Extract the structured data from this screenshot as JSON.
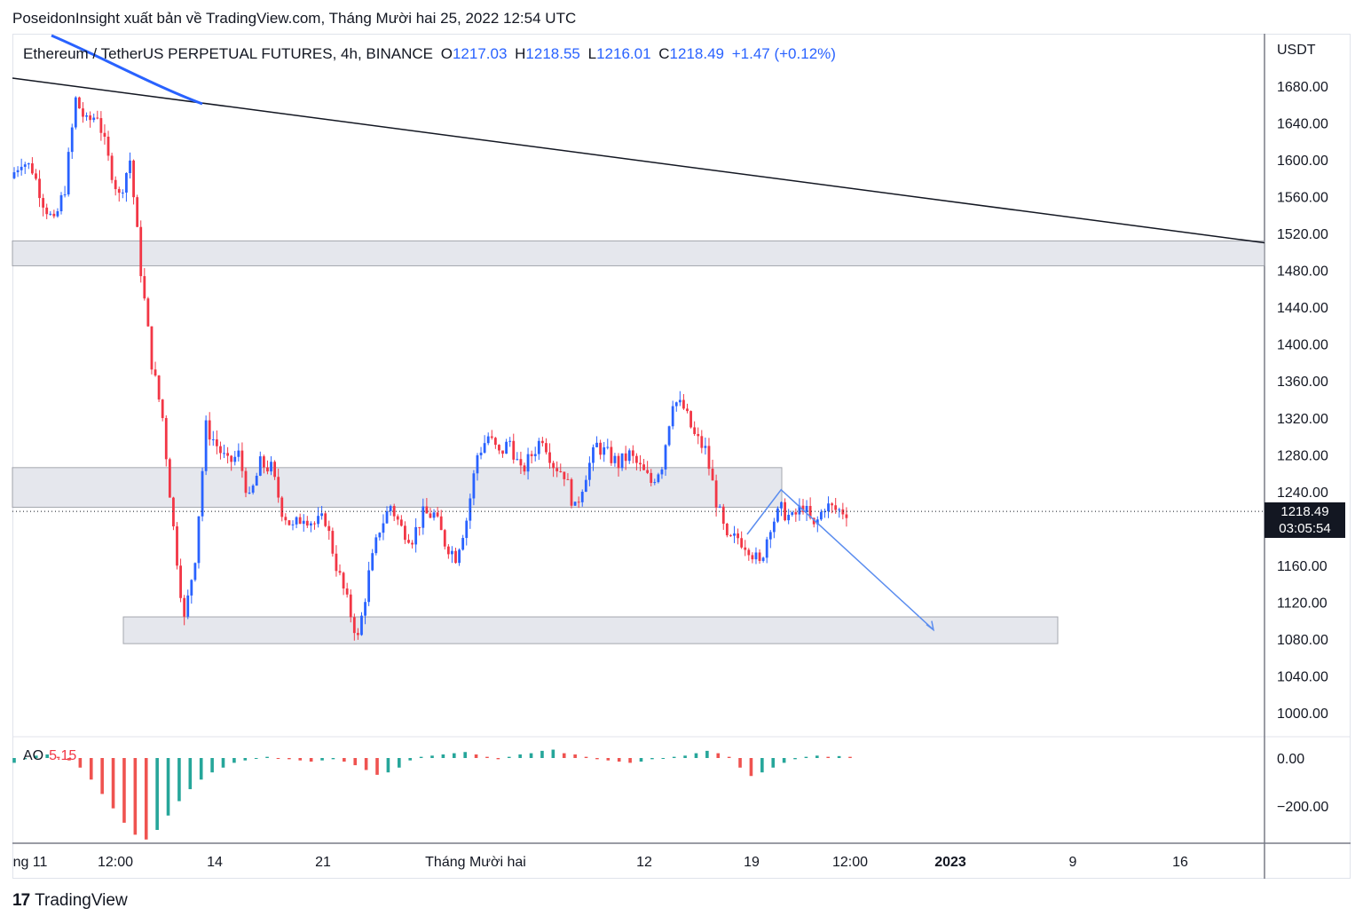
{
  "publisher_line": "PoseidonInsight xuất bản về TradingView.com, Tháng Mười hai 25, 2022 12:54 UTC",
  "legend": {
    "symbol": "Ethereum / TetherUS PERPETUAL FUTURES, 4h, BINANCE",
    "o_label": "O",
    "o_value": "1217.03",
    "h_label": "H",
    "h_value": "1218.55",
    "l_label": "L",
    "l_value": "1216.01",
    "c_label": "C",
    "c_value": "1218.49",
    "change": "+1.47 (+0.12%)"
  },
  "price_axis": {
    "unit": "USDT",
    "ticks": [
      "1680.00",
      "1640.00",
      "1600.00",
      "1560.00",
      "1520.00",
      "1480.00",
      "1440.00",
      "1400.00",
      "1360.00",
      "1320.00",
      "1280.00",
      "1240.00",
      "1160.00",
      "1120.00",
      "1080.00",
      "1040.00",
      "1000.00"
    ],
    "last_price": "1218.49",
    "countdown": "03:05:54"
  },
  "ao_panel": {
    "label": "AO",
    "value": "5.15",
    "ticks": [
      "0.00",
      "−200.00"
    ]
  },
  "time_axis": {
    "labels": [
      "ng 11",
      "12:00",
      "14",
      "21",
      "Tháng Mười hai",
      "12",
      "19",
      "12:00",
      "2023",
      "9",
      "16"
    ]
  },
  "branding": {
    "name": "TradingView",
    "mark": "17"
  },
  "colors": {
    "up": "#2962ff",
    "down": "#f23645",
    "ao_up": "#26a69a",
    "ao_down": "#ef5350",
    "zone": "#d1d4dc",
    "ma": "#2962ff",
    "trendline": "#131722",
    "projection": "#5b8def"
  },
  "chart_data": {
    "type": "candlestick",
    "symbol": "ETHUSDT.P",
    "interval": "4h",
    "ylim": [
      970,
      1720
    ],
    "ohlc_last": {
      "open": 1217.03,
      "high": 1218.55,
      "low": 1216.01,
      "close": 1218.49,
      "change": 1.47,
      "change_pct": 0.12
    },
    "price_path_closes": [
      1580,
      1600,
      1590,
      1555,
      1530,
      1570,
      1665,
      1640,
      1650,
      1600,
      1560,
      1600,
      1480,
      1380,
      1320,
      1200,
      1100,
      1170,
      1310,
      1290,
      1270,
      1280,
      1230,
      1270,
      1265,
      1220,
      1200,
      1215,
      1205,
      1210,
      1160,
      1120,
      1080,
      1150,
      1200,
      1225,
      1200,
      1190,
      1215,
      1215,
      1185,
      1170,
      1210,
      1280,
      1300,
      1280,
      1295,
      1260,
      1280,
      1300,
      1270,
      1260,
      1220,
      1260,
      1290,
      1280,
      1270,
      1280,
      1265,
      1250,
      1270,
      1340,
      1330,
      1300,
      1285,
      1230,
      1185,
      1190,
      1180,
      1160,
      1205,
      1220,
      1210,
      1225,
      1200,
      1225,
      1220,
      1218.49
    ],
    "zones": [
      {
        "from": 1485,
        "to": 1512
      },
      {
        "from": 1223,
        "to": 1266
      },
      {
        "from": 1075,
        "to": 1104
      }
    ],
    "trendline": {
      "from": {
        "date": "2022-11-09",
        "price": 1687
      },
      "to": {
        "date": "2023-01-22",
        "price": 1510
      }
    },
    "projection": [
      {
        "date": "2022-12-22",
        "price": 1242
      },
      {
        "date": "2022-12-31",
        "price": 1090
      }
    ],
    "ao_series_description": "Awesome Oscillator histogram",
    "ao_ylim": [
      -350,
      80
    ],
    "ao_values": [
      -20,
      -5,
      10,
      15,
      5,
      -10,
      -40,
      -90,
      -150,
      -210,
      -270,
      -320,
      -340,
      -300,
      -240,
      -180,
      -130,
      -90,
      -60,
      -40,
      -20,
      -10,
      0,
      5,
      0,
      -5,
      -10,
      -15,
      -10,
      -5,
      -15,
      -30,
      -50,
      -70,
      -60,
      -40,
      -10,
      5,
      10,
      15,
      20,
      25,
      15,
      5,
      -5,
      5,
      15,
      20,
      30,
      35,
      20,
      15,
      5,
      -5,
      -10,
      -15,
      -20,
      -15,
      -5,
      0,
      5,
      10,
      20,
      30,
      20,
      5,
      -40,
      -75,
      -60,
      -40,
      -20,
      -5,
      5,
      10,
      5,
      8,
      5
    ]
  }
}
